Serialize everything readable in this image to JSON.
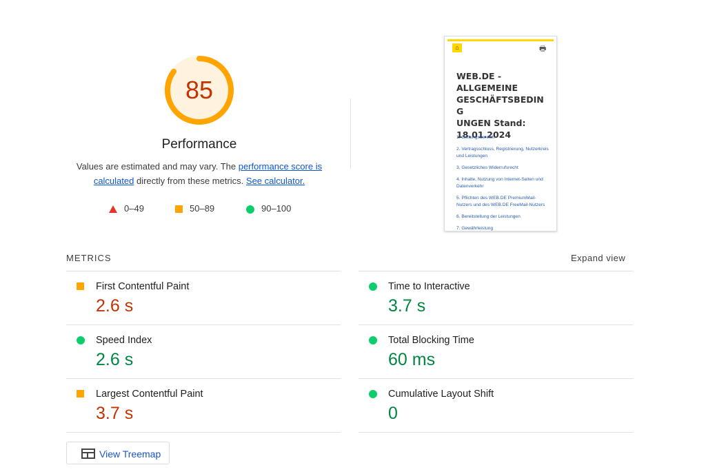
{
  "summary": {
    "score": "85",
    "score_fraction": 0.85,
    "title": "Performance",
    "description_pre": "Values are estimated and may vary. The ",
    "description_link1": "performance score is calculated",
    "description_mid": " directly from these metrics. ",
    "description_link2": "See calculator.",
    "colors": {
      "arc": "#ffa400",
      "arc_bg": "#fff3e0",
      "score_text": "#c33300"
    }
  },
  "legend": [
    {
      "shape": "triangle",
      "label": "0–49",
      "color": "#eb3223"
    },
    {
      "shape": "square",
      "label": "50–89",
      "color": "#ffa400"
    },
    {
      "shape": "circle",
      "label": "90–100",
      "color": "#0cce6b"
    }
  ],
  "screenshot": {
    "logo_icon": "bank-building-icon",
    "print_icon": "printer-icon",
    "title": "WEB.DE - ALLGEMEINE GESCHÄFTSBEDINGUNGEN Stand: 18.01.2024",
    "title_lines": [
      "WEB.DE -",
      "ALLGEMEINE",
      "GESCHÄFTSBEDING",
      "UNGEN Stand:",
      "18.01.2024"
    ],
    "links": [
      "1. Geltungsbereich",
      "2. Vertragsschluss, Registrierung, Nutzerkreis und Leistungen",
      "3. Gesetzliches Widerrufsrecht",
      "4. Inhalte, Nutzung von Internet-Seiten und Datenverkehr",
      "5. Pflichten des WEB.DE PremiumMail-Nutzers und des WEB.DE FreeMail-Nutzers",
      "6. Bereitstellung der Leistungen",
      "7. Gewährleistung"
    ]
  },
  "metrics": {
    "header": "METRICS",
    "expand_label": "Expand view",
    "items": [
      {
        "name": "First Contentful Paint",
        "value": "2.6 s",
        "rating": "average"
      },
      {
        "name": "Time to Interactive",
        "value": "3.7 s",
        "rating": "pass"
      },
      {
        "name": "Speed Index",
        "value": "2.6 s",
        "rating": "pass"
      },
      {
        "name": "Total Blocking Time",
        "value": "60 ms",
        "rating": "pass"
      },
      {
        "name": "Largest Contentful Paint",
        "value": "3.7 s",
        "rating": "average"
      },
      {
        "name": "Cumulative Layout Shift",
        "value": "0",
        "rating": "pass"
      }
    ]
  },
  "treemap": {
    "label": "View Treemap",
    "icon": "treemap-icon"
  }
}
